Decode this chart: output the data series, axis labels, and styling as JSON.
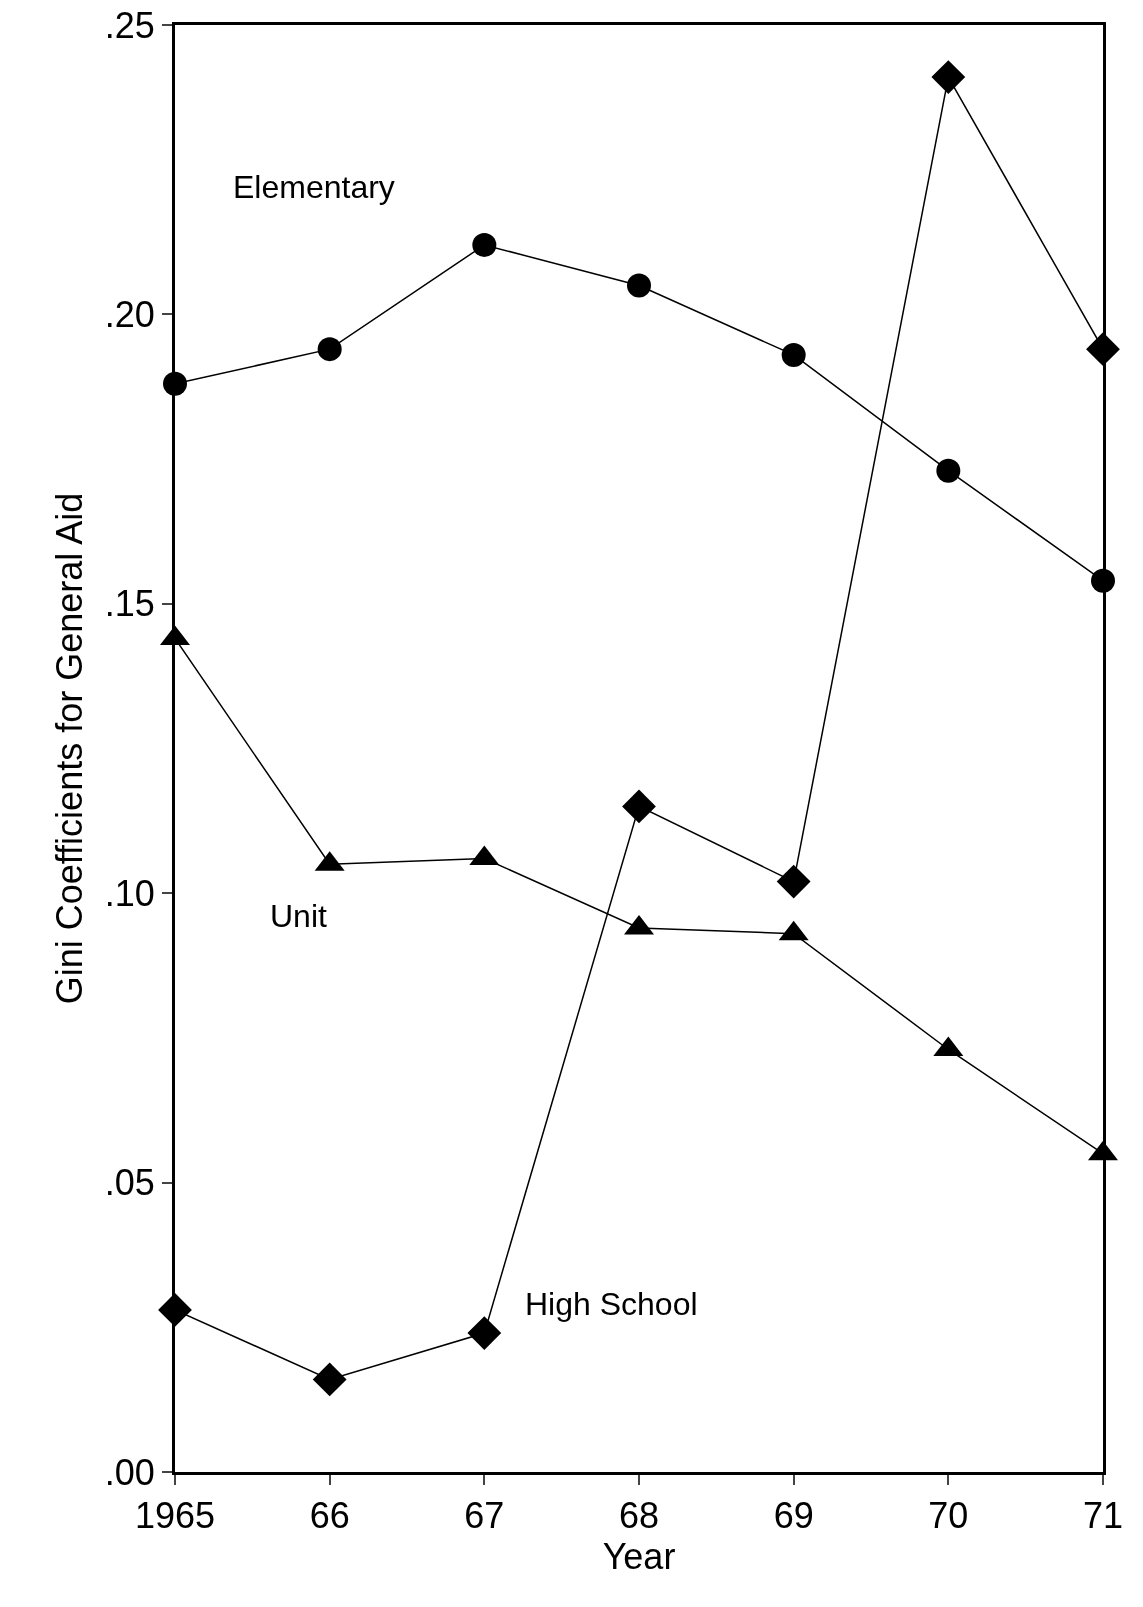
{
  "chart_data": {
    "type": "line",
    "xlabel": "Year",
    "ylabel": "Gini Coefficients for General Aid",
    "x": [
      1965,
      1966,
      1967,
      1968,
      1969,
      1970,
      1971
    ],
    "series": [
      {
        "name": "Elementary",
        "color": "#000000",
        "marker": "circle",
        "values": [
          0.188,
          0.194,
          0.212,
          0.205,
          0.193,
          0.173,
          0.154
        ]
      },
      {
        "name": "Unit",
        "color": "#000000",
        "marker": "triangle",
        "values": [
          0.144,
          0.105,
          0.106,
          0.094,
          0.093,
          0.073,
          0.055
        ]
      },
      {
        "name": "High School",
        "color": "#000000",
        "marker": "diamond",
        "values": [
          0.028,
          0.016,
          0.024,
          0.115,
          0.102,
          0.241,
          0.194
        ]
      }
    ],
    "xlim": [
      1965,
      1971
    ],
    "xticks": [
      1965,
      {
        "value": 1966,
        "label": "66"
      },
      {
        "value": 1967,
        "label": "67"
      },
      {
        "value": 1968,
        "label": "68"
      },
      {
        "value": 1969,
        "label": "69"
      },
      {
        "value": 1970,
        "label": "70"
      },
      {
        "value": 1971,
        "label": "71"
      }
    ],
    "ylim": [
      0,
      0.25
    ],
    "yticks": [
      {
        "value": 0,
        "label": ".00"
      },
      {
        "value": 0.05,
        "label": ".05"
      },
      {
        "value": 0.1,
        "label": ".10"
      },
      {
        "value": 0.15,
        "label": ".15"
      },
      {
        "value": 0.2,
        "label": ".20"
      },
      {
        "value": 0.25,
        "label": ".25"
      }
    ],
    "grid": false,
    "legend": false,
    "line_style": "solid"
  }
}
